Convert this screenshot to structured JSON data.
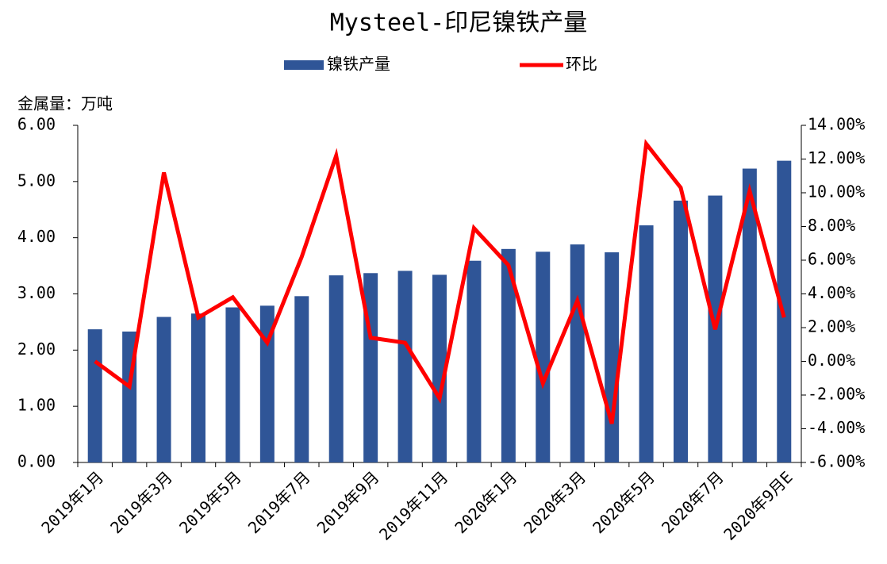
{
  "chart_data": {
    "type": "bar",
    "title": "Mysteel-印尼镍铁产量",
    "y_label": "金属量：万吨",
    "categories": [
      "2019年1月",
      null,
      "2019年3月",
      null,
      "2019年5月",
      null,
      "2019年7月",
      null,
      "2019年9月",
      null,
      "2019年11月",
      null,
      "2020年1月",
      null,
      "2020年3月",
      null,
      "2020年5月",
      null,
      "2020年7月",
      null,
      "2020年9月E"
    ],
    "series": [
      {
        "name": "镍铁产量",
        "type": "bar",
        "color": "#2f5597",
        "values": [
          2.37,
          2.33,
          2.59,
          2.65,
          2.76,
          2.79,
          2.96,
          3.33,
          3.37,
          3.41,
          3.34,
          3.59,
          3.8,
          3.75,
          3.88,
          3.74,
          4.22,
          4.66,
          4.75,
          5.23,
          5.37
        ]
      },
      {
        "name": "环比",
        "type": "line",
        "axis": "y2",
        "color": "#ff0000",
        "values": [
          0.0,
          -1.5,
          11.2,
          2.6,
          3.8,
          1.1,
          6.2,
          12.2,
          1.4,
          1.1,
          -2.2,
          7.9,
          5.7,
          -1.3,
          3.6,
          -3.7,
          12.9,
          10.3,
          1.9,
          10.1,
          2.6
        ]
      }
    ],
    "ylim": [
      0,
      6
    ],
    "yticks": [
      {
        "value": 0,
        "label": "0.00"
      },
      {
        "value": 1,
        "label": "1.00"
      },
      {
        "value": 2,
        "label": "2.00"
      },
      {
        "value": 3,
        "label": "3.00"
      },
      {
        "value": 4,
        "label": "4.00"
      },
      {
        "value": 5,
        "label": "5.00"
      },
      {
        "value": 6,
        "label": "6.00"
      }
    ],
    "y2lim": [
      -6,
      14
    ],
    "y2ticks": [
      {
        "value": -6,
        "label": "-6.00%"
      },
      {
        "value": -4,
        "label": "-4.00%"
      },
      {
        "value": -2,
        "label": "-2.00%"
      },
      {
        "value": 0,
        "label": "0.00%"
      },
      {
        "value": 2,
        "label": "2.00%"
      },
      {
        "value": 4,
        "label": "4.00%"
      },
      {
        "value": 6,
        "label": "6.00%"
      },
      {
        "value": 8,
        "label": "8.00%"
      },
      {
        "value": 10,
        "label": "10.00%"
      },
      {
        "value": 12,
        "label": "12.00%"
      },
      {
        "value": 14,
        "label": "14.00%"
      }
    ],
    "legend": "top"
  }
}
